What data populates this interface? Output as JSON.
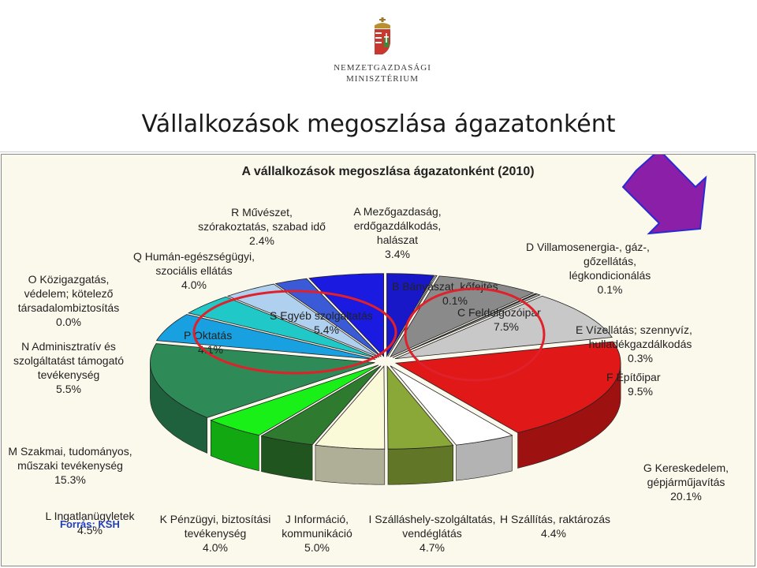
{
  "header": {
    "logo_line1": "NEMZETGAZDASÁGI",
    "logo_line2": "MINISZTÉRIUM",
    "slide_title": "Vállalkozások megoszlása ágazatonként"
  },
  "colors": {
    "frame_bg": "#fbf8ec",
    "highlight_ellipse": "#e0202a",
    "arrow_fill": "#8b1fa8",
    "arrow_stroke": "#2a2ad0",
    "source_text": "#1f3fbf"
  },
  "chart_data": {
    "type": "pie",
    "style": "3d-exploded",
    "title": "A vállalkozások megoszlása ágazatonként (2010)",
    "source": "Forrás: KSH",
    "slices": [
      {
        "code": "A",
        "label_lines": [
          "A Mezőgazdaság,",
          "erdőgazdálkodás,",
          "halászat",
          "3.4%"
        ],
        "value": 3.4,
        "color": "#1818c8"
      },
      {
        "code": "B",
        "label_lines": [
          "B Bányászat, kőfejtés",
          "0.1%"
        ],
        "value": 0.1,
        "color": "#d8d8d8"
      },
      {
        "code": "C",
        "label_lines": [
          "C Feldolgozóipar",
          "7.5%"
        ],
        "value": 7.5,
        "color": "#8a8a8a"
      },
      {
        "code": "D",
        "label_lines": [
          "D Villamosenergia-, gáz-,",
          "gőzellátás,",
          "légkondicionálás",
          "0.1%"
        ],
        "value": 0.1,
        "color": "#6a6a6a"
      },
      {
        "code": "E",
        "label_lines": [
          "E Vízellátás; szennyvíz,",
          "hulladékgazdálkodás",
          "0.3%"
        ],
        "value": 0.3,
        "color": "#b0b0b0"
      },
      {
        "code": "F",
        "label_lines": [
          "F Építőipar",
          "9.5%"
        ],
        "value": 9.5,
        "color": "#c8c8c8"
      },
      {
        "code": "G",
        "label_lines": [
          "G Kereskedelem,",
          "gépjárműjavítás",
          "20.1%"
        ],
        "value": 20.1,
        "color": "#e01818"
      },
      {
        "code": "H",
        "label_lines": [
          "H Szállítás, raktározás",
          "4.4%"
        ],
        "value": 4.4,
        "color": "#ffffff"
      },
      {
        "code": "I",
        "label_lines": [
          "I Szálláshely-szolgáltatás,",
          "vendéglátás",
          "4.7%"
        ],
        "value": 4.7,
        "color": "#8aa838"
      },
      {
        "code": "J",
        "label_lines": [
          "J Információ,",
          "kommunikáció",
          "5.0%"
        ],
        "value": 5.0,
        "color": "#fafad8"
      },
      {
        "code": "K",
        "label_lines": [
          "K Pénzügyi, biztosítási",
          "tevékenység",
          "4.0%"
        ],
        "value": 4.0,
        "color": "#2e7a2e"
      },
      {
        "code": "L",
        "label_lines": [
          "L Ingatlanügyletek",
          "4.5%"
        ],
        "value": 4.5,
        "color": "#18f018"
      },
      {
        "code": "M",
        "label_lines": [
          "M Szakmai, tudományos,",
          "műszaki tevékenység",
          "15.3%"
        ],
        "value": 15.3,
        "color": "#2e8b57"
      },
      {
        "code": "N",
        "label_lines": [
          "N Adminisztratív és",
          "szolgáltatást támogató",
          "tevékenység",
          "5.5%"
        ],
        "value": 5.5,
        "color": "#18a0e0"
      },
      {
        "code": "O",
        "label_lines": [
          "O Közigazgatás,",
          "védelem; kötelező",
          "társadalombiztosítás",
          "0.0%"
        ],
        "value": 0.0,
        "color": "#808080"
      },
      {
        "code": "P",
        "label_lines": [
          "P Oktatás",
          "4.1%"
        ],
        "value": 4.1,
        "color": "#20c8c8"
      },
      {
        "code": "Q",
        "label_lines": [
          "Q Humán-egészségügyi,",
          "szociális ellátás",
          "4.0%"
        ],
        "value": 4.0,
        "color": "#b0d0f0"
      },
      {
        "code": "R",
        "label_lines": [
          "R Művészet,",
          "szórakoztatás, szabad idő",
          "2.4%"
        ],
        "value": 2.4,
        "color": "#3a5ad8"
      },
      {
        "code": "S",
        "label_lines": [
          "S Egyéb szolgáltatás",
          "5.4%"
        ],
        "value": 5.4,
        "color": "#1a1ae0"
      }
    ]
  }
}
